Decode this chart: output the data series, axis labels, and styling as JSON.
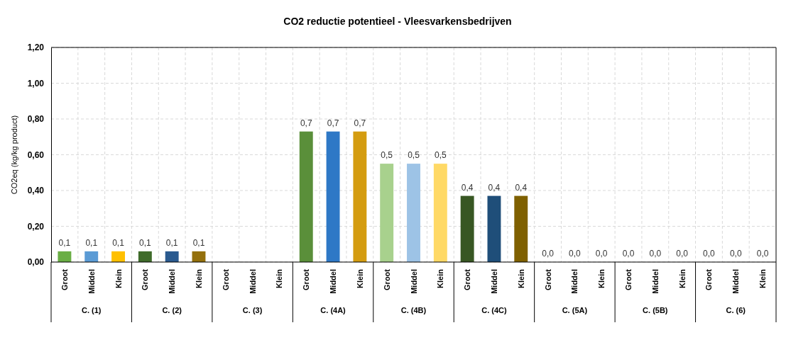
{
  "chart_data": {
    "type": "bar",
    "title": "CO2 reductie potentieel - Vleesvarkensbedrijven",
    "ylabel": "CO2eq (kg/kg product)",
    "categories": [
      "Groot",
      "Middel",
      "Klein",
      "Groot",
      "Middel",
      "Klein",
      "Groot",
      "Middel",
      "Klein",
      "Groot",
      "Middel",
      "Klein",
      "Groot",
      "Middel",
      "Klein",
      "Groot",
      "Middel",
      "Klein",
      "Groot",
      "Middel",
      "Klein",
      "Groot",
      "Middel",
      "Klein",
      "Groot",
      "Middel",
      "Klein"
    ],
    "values": [
      0.06,
      0.06,
      0.06,
      0.06,
      0.06,
      0.06,
      null,
      null,
      null,
      0.73,
      0.73,
      0.73,
      0.55,
      0.55,
      0.55,
      0.37,
      0.37,
      0.37,
      0,
      0,
      0,
      0,
      0,
      0,
      0,
      0,
      0
    ],
    "value_labels": [
      "0,1",
      "0,1",
      "0,1",
      "0,1",
      "0,1",
      "0,1",
      null,
      null,
      null,
      "0,7",
      "0,7",
      "0,7",
      "0,5",
      "0,5",
      "0,5",
      "0,4",
      "0,4",
      "0,4",
      "0,0",
      "0,0",
      "0,0",
      "0,0",
      "0,0",
      "0,0",
      "0,0",
      "0,0",
      "0,0"
    ],
    "colors": [
      "#6aae45",
      "#5b9bd5",
      "#ffc000",
      "#3f6b2a",
      "#2a5a8f",
      "#94700c",
      null,
      null,
      null,
      "#5a8f3a",
      "#2e78c6",
      "#d49c10",
      "#a8d18d",
      "#9dc3e6",
      "#ffd966",
      "#385723",
      "#1f4e79",
      "#7f6000",
      "#6aae45",
      "#5b9bd5",
      "#ffc000",
      "#6aae45",
      "#5b9bd5",
      "#ffc000",
      "#6aae45",
      "#5b9bd5",
      "#ffc000"
    ],
    "annotations": [
      "C. (1)",
      "C. (2)",
      "C. (3)",
      "C. (4A)",
      "C. (4B)",
      "C. (4C)",
      "C. (5A)",
      "C. (5B)",
      "C. (6)"
    ],
    "ylim": [
      0,
      1.2
    ],
    "yticks": [
      {
        "value": 0,
        "label": "0,00"
      },
      {
        "value": 0.2,
        "label": "0,20"
      },
      {
        "value": 0.4,
        "label": "0,40"
      },
      {
        "value": 0.6,
        "label": "0,60"
      },
      {
        "value": 0.8,
        "label": "0,80"
      },
      {
        "value": 1,
        "label": "1,00"
      },
      {
        "value": 1.2,
        "label": "1,20"
      }
    ],
    "grid": true
  }
}
